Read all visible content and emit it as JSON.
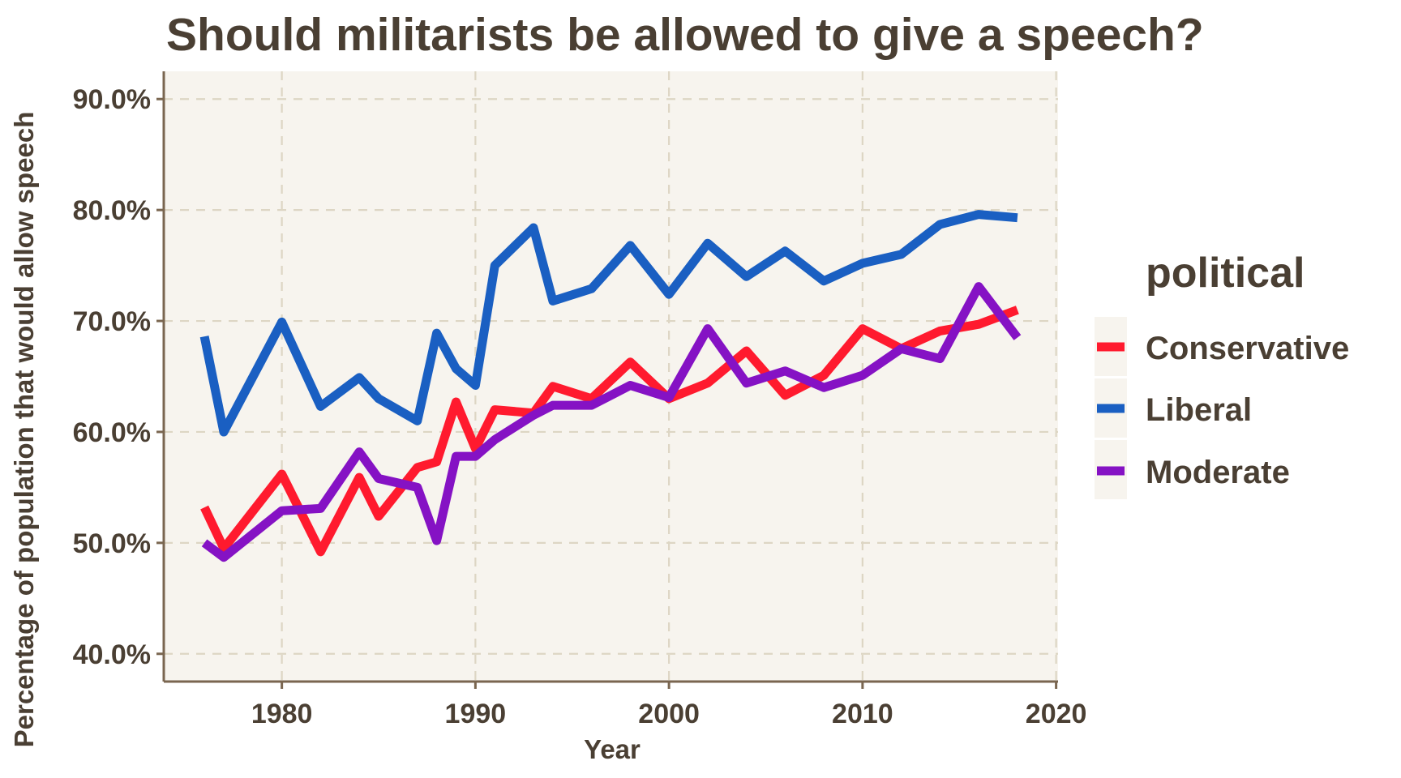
{
  "chart_data": {
    "type": "line",
    "title": "Should militarists be allowed to give a speech?",
    "xlabel": "Year",
    "ylabel": "Percentage of population that would allow speech",
    "xlim": [
      1973.9,
      2020.1
    ],
    "ylim": [
      37.5,
      92.5
    ],
    "x_ticks": [
      1980,
      1990,
      2000,
      2010,
      2020
    ],
    "x_tick_labels": [
      "1980",
      "1990",
      "2000",
      "2010",
      "2020"
    ],
    "y_ticks": [
      40,
      50,
      60,
      70,
      80,
      90
    ],
    "y_tick_labels": [
      "40.0%",
      "50.0%",
      "60.0%",
      "70.0%",
      "80.0%",
      "90.0%"
    ],
    "grid": true,
    "legend": {
      "title": "political",
      "position": "right",
      "entries": [
        "Conservative",
        "Liberal",
        "Moderate"
      ]
    },
    "series": [
      {
        "name": "Conservative",
        "color": "#ff1a2e",
        "x": [
          1976,
          1977,
          1980,
          1982,
          1984,
          1985,
          1987,
          1988,
          1989,
          1990,
          1991,
          1993,
          1994,
          1996,
          1998,
          2000,
          2002,
          2004,
          2006,
          2008,
          2010,
          2012,
          2014,
          2016,
          2018
        ],
        "values": [
          53.2,
          49.5,
          56.2,
          49.2,
          55.9,
          52.4,
          56.8,
          57.3,
          62.7,
          58.5,
          62.0,
          61.7,
          64.1,
          63.0,
          66.3,
          63.0,
          64.4,
          67.3,
          63.3,
          65.1,
          69.3,
          67.5,
          69.1,
          69.7,
          71.0
        ]
      },
      {
        "name": "Liberal",
        "color": "#1a5fc2",
        "x": [
          1976,
          1977,
          1980,
          1982,
          1984,
          1985,
          1987,
          1988,
          1989,
          1990,
          1991,
          1993,
          1994,
          1996,
          1998,
          2000,
          2002,
          2004,
          2006,
          2008,
          2010,
          2012,
          2014,
          2016,
          2018
        ],
        "values": [
          68.6,
          60.0,
          69.9,
          62.3,
          64.9,
          63.0,
          61.0,
          68.9,
          65.7,
          64.2,
          75.0,
          78.4,
          71.8,
          72.9,
          76.8,
          72.4,
          77.0,
          74.0,
          76.3,
          73.6,
          75.2,
          76.0,
          78.7,
          79.6,
          79.3
        ]
      },
      {
        "name": "Moderate",
        "color": "#8512c4",
        "x": [
          1976,
          1977,
          1980,
          1982,
          1984,
          1985,
          1987,
          1988,
          1989,
          1990,
          1991,
          1993,
          1994,
          1996,
          1998,
          2000,
          2002,
          2004,
          2006,
          2008,
          2010,
          2012,
          2014,
          2016,
          2018
        ],
        "values": [
          50.0,
          48.7,
          52.9,
          53.1,
          58.2,
          55.8,
          55.0,
          50.2,
          57.8,
          57.8,
          59.3,
          61.5,
          62.4,
          62.4,
          64.2,
          63.1,
          69.3,
          64.4,
          65.5,
          64.0,
          65.1,
          67.5,
          66.6,
          73.1,
          68.5
        ]
      }
    ]
  },
  "colors": {
    "text": "#4a3f33",
    "panel_background": "#f7f4ee",
    "grid": "#ddd6c4",
    "axis": "#7a6650"
  }
}
